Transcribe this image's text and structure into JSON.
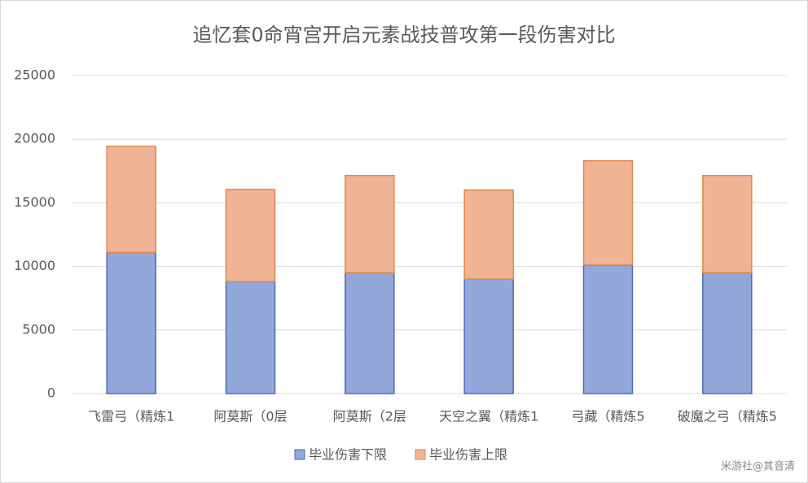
{
  "chart_data": {
    "type": "stacked-bar",
    "title": "追忆套0命宵宫开启元素战技普攻第一段伤害对比",
    "categories": [
      "飞雷弓（精炼1",
      "阿莫斯（0层",
      "阿莫斯（2层",
      "天空之翼（精炼1",
      "弓藏（精炼5",
      "破魔之弓（精炼5"
    ],
    "series": [
      {
        "name": "毕业伤害下限",
        "color": "#94a7da",
        "stroke": "#4a6cb8",
        "values": [
          11100,
          8800,
          9500,
          9000,
          10100,
          9500
        ]
      },
      {
        "name": "毕业伤害上限",
        "color": "#f0b394",
        "stroke": "#e0884c",
        "values": [
          8340,
          7250,
          7650,
          7000,
          8200,
          7650
        ]
      }
    ],
    "ylim": [
      0,
      25000
    ],
    "yticks": [
      0,
      5000,
      10000,
      15000,
      20000,
      25000
    ],
    "grid": true,
    "legend": "bottom",
    "watermark": "米游社@其音清"
  }
}
